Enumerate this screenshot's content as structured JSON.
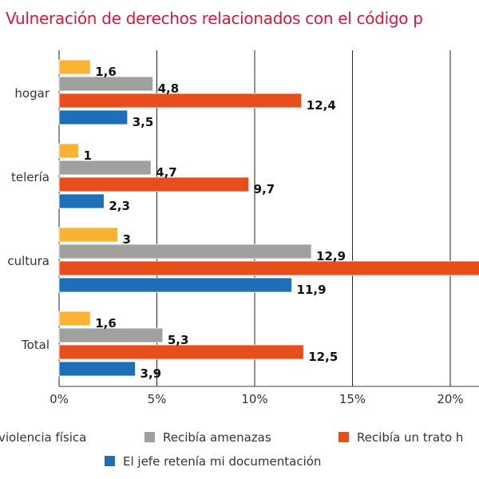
{
  "title": "Vulneración de derechos relacionados con el código p",
  "chart_data": {
    "type": "bar",
    "orientation": "horizontal",
    "title": "Vulneración de derechos relacionados con el código p",
    "categories": [
      "hogar",
      "telería",
      "cultura",
      "Total"
    ],
    "series": [
      {
        "name": "violencia física",
        "color": "#f9b233",
        "values": [
          1.6,
          1,
          3,
          1.6
        ],
        "labels": [
          "1,6",
          "1",
          "3",
          "1,6"
        ]
      },
      {
        "name": "Recibía amenazas",
        "color": "#a0a09f",
        "values": [
          4.8,
          4.7,
          12.9,
          5.3
        ],
        "labels": [
          "4,8",
          "4,7",
          "12,9",
          "5,3"
        ]
      },
      {
        "name": "Recibía un trato h",
        "color": "#e84e1b",
        "values": [
          12.4,
          9.7,
          22.5,
          12.5
        ],
        "labels": [
          "12,4",
          "9,7",
          "",
          "12,5"
        ]
      },
      {
        "name": "El jefe retenía mi documentación",
        "color": "#1d70b7",
        "values": [
          3.5,
          2.3,
          11.9,
          3.9
        ],
        "labels": [
          "3,5",
          "2,3",
          "11,9",
          "3,9"
        ]
      }
    ],
    "xticks": [
      "0%",
      "5%",
      "10%",
      "15%",
      "20%"
    ],
    "xtick_values": [
      0,
      5,
      10,
      15,
      20
    ],
    "xlim": [
      0,
      21.6
    ],
    "xlabel": "",
    "ylabel": "",
    "grid": "vertical",
    "legend_position": "bottom",
    "note": "Orange bar for 'cultura' extends beyond the visible area; its label is not visible"
  },
  "legend": [
    {
      "label": "violencia física",
      "color": "#f9b233"
    },
    {
      "label": "Recibía amenazas",
      "color": "#a0a09f"
    },
    {
      "label": "Recibía un trato h",
      "color": "#e84e1b"
    },
    {
      "label": "El jefe retenía mi documentación",
      "color": "#1d70b7"
    }
  ]
}
